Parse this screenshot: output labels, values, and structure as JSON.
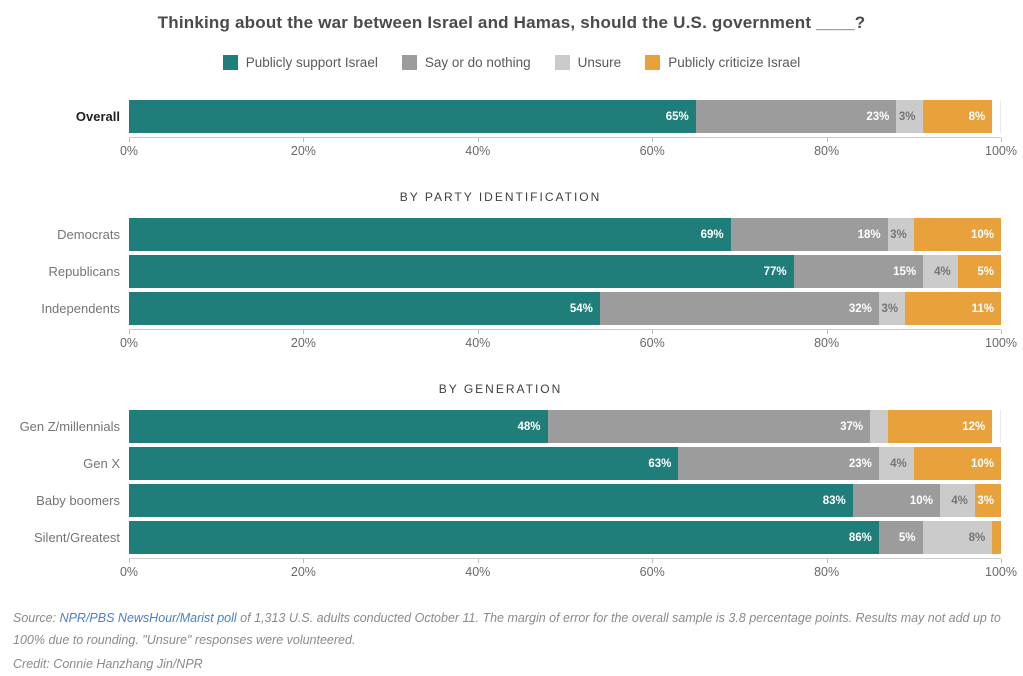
{
  "title": "Thinking about the war between Israel and Hamas, should the U.S. government ____?",
  "colors": {
    "support": "#1f7e79",
    "nothing": "#9c9c9c",
    "unsure": "#cbcbcb",
    "criticize": "#e9a13b",
    "link_blue": "#4a80c9"
  },
  "legend": [
    {
      "label": "Publicly support Israel",
      "color": "#1f7e79"
    },
    {
      "label": "Say or do nothing",
      "color": "#9c9c9c"
    },
    {
      "label": "Unsure",
      "color": "#cbcbcb"
    },
    {
      "label": "Publicly criticize Israel",
      "color": "#e9a13b"
    }
  ],
  "chart_data": {
    "type": "bar",
    "orientation": "horizontal",
    "stacked": true,
    "title": "Thinking about the war between Israel and Hamas, should the U.S. government ____?",
    "series_names": [
      "Publicly support Israel",
      "Say or do nothing",
      "Unsure",
      "Publicly criticize Israel"
    ],
    "xlim": [
      0,
      100
    ],
    "x_ticks": [
      "0%",
      "20%",
      "40%",
      "60%",
      "80%",
      "100%"
    ],
    "grid": true,
    "groups": [
      {
        "header": "",
        "rows": [
          {
            "label": "Overall",
            "bold": true,
            "values": [
              65,
              23,
              3,
              8
            ],
            "value_labels": [
              "65%",
              "23%",
              "3%",
              "8%"
            ]
          }
        ]
      },
      {
        "header": "BY PARTY IDENTIFICATION",
        "rows": [
          {
            "label": "Democrats",
            "bold": false,
            "values": [
              69,
              18,
              3,
              10
            ],
            "value_labels": [
              "69%",
              "18%",
              "3%",
              "10%"
            ]
          },
          {
            "label": "Republicans",
            "bold": false,
            "values": [
              77,
              15,
              4,
              5
            ],
            "value_labels": [
              "77%",
              "15%",
              "4%",
              "5%"
            ]
          },
          {
            "label": "Independents",
            "bold": false,
            "values": [
              54,
              32,
              3,
              11
            ],
            "value_labels": [
              "54%",
              "32%",
              "3%",
              "11%"
            ]
          }
        ]
      },
      {
        "header": "BY GENERATION",
        "rows": [
          {
            "label": "Gen Z/millennials",
            "bold": false,
            "values": [
              48,
              37,
              2,
              12
            ],
            "value_labels": [
              "48%",
              "37%",
              "",
              "12%"
            ]
          },
          {
            "label": "Gen X",
            "bold": false,
            "values": [
              63,
              23,
              4,
              10
            ],
            "value_labels": [
              "63%",
              "23%",
              "4%",
              "10%"
            ]
          },
          {
            "label": "Baby boomers",
            "bold": false,
            "values": [
              83,
              10,
              4,
              3
            ],
            "value_labels": [
              "83%",
              "10%",
              "4%",
              "3%"
            ]
          },
          {
            "label": "Silent/Greatest",
            "bold": false,
            "values": [
              86,
              5,
              8,
              1
            ],
            "value_labels": [
              "86%",
              "5%",
              "8%",
              ""
            ]
          }
        ]
      }
    ]
  },
  "footer": {
    "source_prefix": "Source: ",
    "source_link": "NPR/PBS NewsHour/Marist poll",
    "source_rest": " of 1,313 U.S. adults conducted October 11. The margin of error for the overall sample is 3.8 percentage points. Results may not add up to 100% due to rounding. \"Unsure\" responses were volunteered.",
    "credit": "Credit: Connie Hanzhang Jin/NPR"
  }
}
